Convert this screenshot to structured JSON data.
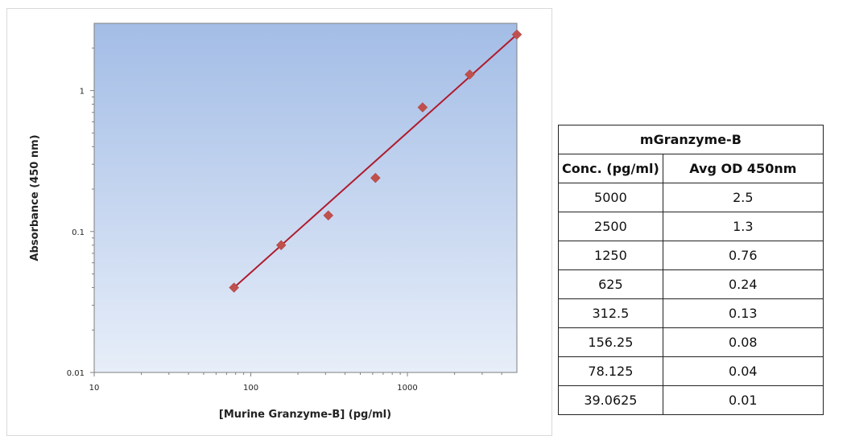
{
  "chart_data": {
    "type": "scatter",
    "x_scale": "log",
    "y_scale": "log",
    "xlabel": "[Murine Granzyme-B] (pg/ml)",
    "ylabel": "Absorbance (450 nm)",
    "xlim": [
      10,
      5000
    ],
    "ylim": [
      0.01,
      3
    ],
    "x_ticks": [
      10,
      100,
      1000
    ],
    "x_tick_labels": [
      "10",
      "100",
      "1000"
    ],
    "y_ticks": [
      0.01,
      0.1,
      1
    ],
    "y_tick_labels": [
      "0.01",
      "0.1",
      "1"
    ],
    "series": [
      {
        "x": [
          78.125,
          156.25,
          312.5,
          625,
          1250,
          2500,
          5000
        ],
        "y": [
          0.04,
          0.08,
          0.13,
          0.24,
          0.76,
          1.3,
          2.5
        ]
      }
    ],
    "trendline": {
      "type": "power",
      "x": [
        78.125,
        5000
      ],
      "y": [
        0.04,
        2.5
      ]
    },
    "colors": {
      "marker": "#c0504d",
      "line": "#b01c2e",
      "plot_bg_top": "#a3bde6",
      "plot_bg_bottom": "#e7eef9"
    },
    "grid": false,
    "legend": "none"
  },
  "table": {
    "title": "mGranzyme-B",
    "headers": [
      "Conc. (pg/ml)",
      "Avg OD 450nm"
    ],
    "rows": [
      [
        "5000",
        "2.5"
      ],
      [
        "2500",
        "1.3"
      ],
      [
        "1250",
        "0.76"
      ],
      [
        "625",
        "0.24"
      ],
      [
        "312.5",
        "0.13"
      ],
      [
        "156.25",
        "0.08"
      ],
      [
        "78.125",
        "0.04"
      ],
      [
        "39.0625",
        "0.01"
      ]
    ]
  }
}
